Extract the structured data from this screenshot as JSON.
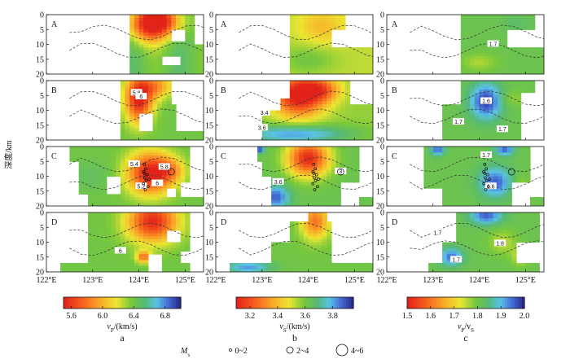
{
  "chart_data": {
    "type": "heatmap",
    "description_free": true,
    "y_axis_label": "深度/km",
    "depth_ticks": [
      "0",
      "5",
      "10",
      "15",
      "20"
    ],
    "depth_range": [
      0,
      20
    ],
    "lon_range": [
      122,
      125.4
    ],
    "lon_ticks": [
      {
        "v": 122,
        "label": "122°E"
      },
      {
        "v": 123,
        "label": "123°E"
      },
      {
        "v": 124,
        "label": "124°E"
      },
      {
        "v": 125,
        "label": "125°E"
      }
    ],
    "row_labels": [
      "A",
      "B",
      "C",
      "D"
    ],
    "columns": [
      {
        "caption": "a",
        "colorbar": {
          "min": 5.5,
          "max": 7.0,
          "ticks": [
            "5.6",
            "6.0",
            "6.4",
            "6.8"
          ],
          "tick_values": [
            5.6,
            6.0,
            6.4,
            6.8
          ],
          "title": "vP/(km/s)",
          "title_main": "v",
          "title_sub": "P",
          "title_rest": "/(km/s)"
        },
        "contour_labels": [
          {
            "row": 1,
            "lon": 123.95,
            "depth": 4.2,
            "text": "5.8"
          },
          {
            "row": 1,
            "lon": 124.05,
            "depth": 5.5,
            "text": "6"
          },
          {
            "row": 2,
            "lon": 123.9,
            "depth": 6.0,
            "text": "5.4"
          },
          {
            "row": 2,
            "lon": 124.55,
            "depth": 7.0,
            "text": "5.8"
          },
          {
            "row": 2,
            "lon": 124.4,
            "depth": 12.5,
            "text": "6"
          },
          {
            "row": 2,
            "lon": 124.05,
            "depth": 13.5,
            "text": "5.2"
          },
          {
            "row": 3,
            "lon": 123.6,
            "depth": 13.0,
            "text": "6"
          }
        ]
      },
      {
        "caption": "b",
        "colorbar": {
          "min": 3.1,
          "max": 3.95,
          "ticks": [
            "3.2",
            "3.4",
            "3.6",
            "3.8"
          ],
          "tick_values": [
            3.2,
            3.4,
            3.6,
            3.8
          ],
          "title": "vS/(km/s)",
          "title_main": "v",
          "title_sub": "S",
          "title_rest": "/(km/s)"
        },
        "contour_labels": [
          {
            "row": 1,
            "lon": 123.05,
            "depth": 11.0,
            "text": "3.4"
          },
          {
            "row": 1,
            "lon": 123.0,
            "depth": 16.0,
            "text": "3.6"
          },
          {
            "row": 2,
            "lon": 124.7,
            "depth": 8.5,
            "text": "3"
          },
          {
            "row": 2,
            "lon": 123.35,
            "depth": 12.0,
            "text": "3.6"
          }
        ]
      },
      {
        "caption": "c",
        "colorbar": {
          "min": 1.5,
          "max": 2.0,
          "ticks": [
            "1.5",
            "1.6",
            "1.7",
            "1.8",
            "1.9",
            "2.0"
          ],
          "tick_values": [
            1.5,
            1.6,
            1.7,
            1.8,
            1.9,
            2.0
          ],
          "title": "vP/vS",
          "title_main": "v",
          "title_sub": "P",
          "title_rest": "/v",
          "title_sub2": "S"
        },
        "contour_labels": [
          {
            "row": 0,
            "lon": 124.3,
            "depth": 10.0,
            "text": "1.7"
          },
          {
            "row": 1,
            "lon": 124.15,
            "depth": 7.0,
            "text": "1.6"
          },
          {
            "row": 1,
            "lon": 123.55,
            "depth": 14.0,
            "text": "1.7"
          },
          {
            "row": 1,
            "lon": 124.5,
            "depth": 16.5,
            "text": "1.7"
          },
          {
            "row": 2,
            "lon": 124.15,
            "depth": 3.0,
            "text": "1.7"
          },
          {
            "row": 2,
            "lon": 124.25,
            "depth": 13.5,
            "text": "1.6"
          },
          {
            "row": 3,
            "lon": 123.1,
            "depth": 7.0,
            "text": "1.7"
          },
          {
            "row": 3,
            "lon": 124.45,
            "depth": 10.5,
            "text": "1.8"
          },
          {
            "row": 3,
            "lon": 123.5,
            "depth": 16.0,
            "text": "1.7"
          }
        ]
      }
    ],
    "legend": {
      "title": "Ms",
      "title_main": "M",
      "title_sub": "s",
      "items": [
        {
          "label": "0~2",
          "radius": 1.5
        },
        {
          "label": "2~4",
          "radius": 4
        },
        {
          "label": "4~6",
          "radius": 7
        }
      ]
    },
    "earthquakes_row_C": [
      {
        "lon": 124.12,
        "depth": 6.0,
        "mag": 1
      },
      {
        "lon": 124.15,
        "depth": 7.5,
        "mag": 1
      },
      {
        "lon": 124.1,
        "depth": 8.5,
        "mag": 1
      },
      {
        "lon": 124.18,
        "depth": 9.5,
        "mag": 1
      },
      {
        "lon": 124.13,
        "depth": 10.5,
        "mag": 1
      },
      {
        "lon": 124.16,
        "depth": 11.5,
        "mag": 1
      },
      {
        "lon": 124.1,
        "depth": 12.5,
        "mag": 1
      },
      {
        "lon": 124.2,
        "depth": 13.5,
        "mag": 1
      },
      {
        "lon": 124.14,
        "depth": 14.5,
        "mag": 1
      },
      {
        "lon": 124.12,
        "depth": 9.0,
        "mag": 1
      },
      {
        "lon": 124.22,
        "depth": 11.0,
        "mag": 1
      },
      {
        "lon": 124.7,
        "depth": 8.5,
        "mag": 3
      }
    ]
  }
}
